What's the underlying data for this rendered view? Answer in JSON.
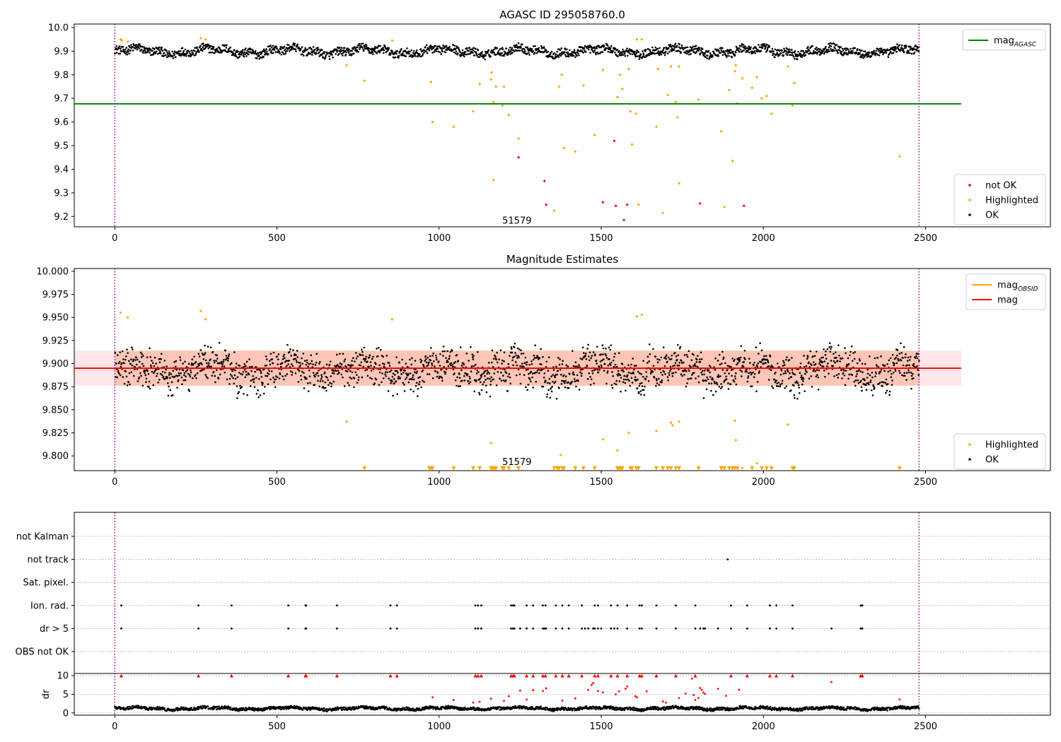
{
  "chart_data": [
    {
      "type": "scatter",
      "title": "AGASC ID 295058760.0",
      "xlabel": "",
      "ylabel": "",
      "xlim": [
        -125,
        2885
      ],
      "ylim": [
        9.156,
        10.015
      ],
      "xticks": [
        "0",
        "500",
        "1000",
        "1500",
        "2000",
        "2500"
      ],
      "yticks": [
        "9.2",
        "9.3",
        "9.4",
        "9.5",
        "9.6",
        "9.7",
        "9.8",
        "9.9",
        "10.0"
      ],
      "grid": false,
      "legend_top": {
        "position": "top-right",
        "entries": [
          {
            "label": "mag",
            "subscript": "AGASC",
            "color": "#008000"
          }
        ]
      },
      "legend_bottom": {
        "position": "bottom-right",
        "entries": [
          {
            "label": "not OK",
            "color": "#ff0000"
          },
          {
            "label": "Highlighted",
            "color": "#ffa500"
          },
          {
            "label": "OK",
            "color": "#000000"
          }
        ]
      },
      "reference_line": {
        "y": 9.677,
        "x_range": [
          -125,
          2610
        ],
        "color": "#008000"
      },
      "vlines": [
        {
          "x": 0,
          "color": "#800080"
        },
        {
          "x": 2480,
          "color": "#800080"
        }
      ],
      "annotation": {
        "text": "51579",
        "x": 1240,
        "y": 9.17
      },
      "ok_band": {
        "x_range": [
          0,
          2480
        ],
        "center": 9.9,
        "amplitude": 0.02
      },
      "series": [
        {
          "name": "Highlighted",
          "color": "#ffa500",
          "points": [
            [
              18,
              9.95
            ],
            [
              22,
              9.945
            ],
            [
              40,
              9.94
            ],
            [
              265,
              9.955
            ],
            [
              280,
              9.95
            ],
            [
              715,
              9.84
            ],
            [
              770,
              9.775
            ],
            [
              855,
              9.945
            ],
            [
              975,
              9.77
            ],
            [
              980,
              9.6
            ],
            [
              1045,
              9.58
            ],
            [
              1105,
              9.645
            ],
            [
              1125,
              9.76
            ],
            [
              1160,
              9.78
            ],
            [
              1162,
              9.81
            ],
            [
              1168,
              9.685
            ],
            [
              1168,
              9.355
            ],
            [
              1175,
              9.75
            ],
            [
              1195,
              9.67
            ],
            [
              1200,
              9.75
            ],
            [
              1215,
              9.63
            ],
            [
              1245,
              9.53
            ],
            [
              1355,
              9.225
            ],
            [
              1370,
              9.75
            ],
            [
              1378,
              9.8
            ],
            [
              1385,
              9.49
            ],
            [
              1420,
              9.475
            ],
            [
              1445,
              9.755
            ],
            [
              1480,
              9.545
            ],
            [
              1505,
              9.82
            ],
            [
              1550,
              9.705
            ],
            [
              1558,
              9.8
            ],
            [
              1565,
              9.74
            ],
            [
              1585,
              9.825
            ],
            [
              1590,
              9.645
            ],
            [
              1595,
              9.505
            ],
            [
              1608,
              9.635
            ],
            [
              1610,
              9.95
            ],
            [
              1615,
              9.25
            ],
            [
              1625,
              9.95
            ],
            [
              1670,
              9.58
            ],
            [
              1675,
              9.825
            ],
            [
              1690,
              9.215
            ],
            [
              1705,
              9.715
            ],
            [
              1715,
              9.835
            ],
            [
              1730,
              9.685
            ],
            [
              1735,
              9.62
            ],
            [
              1740,
              9.34
            ],
            [
              1740,
              9.835
            ],
            [
              1800,
              9.695
            ],
            [
              1870,
              9.56
            ],
            [
              1880,
              9.24
            ],
            [
              1895,
              9.735
            ],
            [
              1905,
              9.435
            ],
            [
              1912,
              9.815
            ],
            [
              1915,
              9.84
            ],
            [
              1920,
              9.68
            ],
            [
              1935,
              9.785
            ],
            [
              1965,
              9.745
            ],
            [
              1980,
              9.79
            ],
            [
              1995,
              9.7
            ],
            [
              2010,
              9.71
            ],
            [
              2025,
              9.635
            ],
            [
              2075,
              9.835
            ],
            [
              2090,
              9.67
            ],
            [
              2095,
              9.765
            ],
            [
              2420,
              9.455
            ]
          ]
        },
        {
          "name": "not OK",
          "color": "#ff0000",
          "points": [
            [
              1245,
              9.45
            ],
            [
              1325,
              9.35
            ],
            [
              1330,
              9.25
            ],
            [
              1505,
              9.26
            ],
            [
              1540,
              9.52
            ],
            [
              1545,
              9.245
            ],
            [
              1570,
              9.185
            ],
            [
              1580,
              9.25
            ],
            [
              1805,
              9.255
            ],
            [
              1940,
              9.245
            ]
          ]
        }
      ]
    },
    {
      "type": "scatter",
      "title": "Magnitude Estimates",
      "xlabel": "",
      "ylabel": "",
      "xlim": [
        -125,
        2885
      ],
      "ylim": [
        9.784,
        10.003
      ],
      "xticks": [
        "0",
        "500",
        "1000",
        "1500",
        "2000",
        "2500"
      ],
      "yticks": [
        "9.800",
        "9.825",
        "9.850",
        "9.875",
        "9.900",
        "9.925",
        "9.950",
        "9.975",
        "10.000"
      ],
      "grid": false,
      "legend_top": {
        "position": "top-right",
        "entries": [
          {
            "label": "mag",
            "subscript": "OBSID",
            "color": "#ffa500"
          },
          {
            "label": "mag",
            "subscript": "",
            "color": "#ff0000"
          }
        ]
      },
      "legend_bottom": {
        "position": "bottom-right",
        "entries": [
          {
            "label": "Highlighted",
            "color": "#ffa500"
          },
          {
            "label": "OK",
            "color": "#000000"
          }
        ]
      },
      "mean_line": {
        "y": 9.895,
        "x_range": [
          -125,
          2610
        ],
        "color": "#ff0000"
      },
      "obsid_line": {
        "y": 9.895,
        "x_range": [
          0,
          2480
        ],
        "color": "#ffa500"
      },
      "band_red": {
        "range": [
          9.876,
          9.914
        ],
        "x_range": [
          -125,
          2610
        ],
        "color": "#ffb6c1"
      },
      "band_orange": {
        "range": [
          9.876,
          9.914
        ],
        "x_range": [
          0,
          2480
        ],
        "color": "#ffa07a"
      },
      "vlines": [
        {
          "x": 0,
          "color": "#800080"
        },
        {
          "x": 2480,
          "color": "#800080"
        }
      ],
      "annotation": {
        "text": "51579",
        "x": 1240,
        "y": 9.79
      },
      "ok_band": {
        "x_range": [
          0,
          2480
        ],
        "center": 9.893,
        "amplitude": 0.013
      },
      "series": [
        {
          "name": "Highlighted",
          "color": "#ffa500",
          "points": [
            [
              18,
              9.955
            ],
            [
              40,
              9.95
            ],
            [
              265,
              9.957
            ],
            [
              280,
              9.948
            ],
            [
              715,
              9.837
            ],
            [
              855,
              9.948
            ],
            [
              1160,
              9.814
            ],
            [
              1375,
              9.801
            ],
            [
              1505,
              9.818
            ],
            [
              1550,
              9.806
            ],
            [
              1585,
              9.825
            ],
            [
              1610,
              9.951
            ],
            [
              1625,
              9.953
            ],
            [
              1670,
              9.827
            ],
            [
              1715,
              9.836
            ],
            [
              1720,
              9.833
            ],
            [
              1740,
              9.837
            ],
            [
              1912,
              9.838
            ],
            [
              1915,
              9.817
            ],
            [
              1935,
              9.787
            ],
            [
              1980,
              9.792
            ],
            [
              2075,
              9.834
            ]
          ]
        }
      ],
      "offscale_markers": {
        "color": "#ffa500",
        "shape": "triangle-down",
        "y": 9.7865,
        "x": [
          770,
          970,
          975,
          980,
          1045,
          1105,
          1125,
          1160,
          1165,
          1170,
          1175,
          1195,
          1200,
          1215,
          1245,
          1355,
          1365,
          1370,
          1380,
          1385,
          1420,
          1445,
          1480,
          1550,
          1555,
          1560,
          1565,
          1590,
          1595,
          1608,
          1615,
          1670,
          1690,
          1705,
          1715,
          1730,
          1740,
          1800,
          1870,
          1880,
          1895,
          1905,
          1912,
          1920,
          1965,
          1995,
          2010,
          2025,
          2090,
          2095,
          2420
        ]
      }
    },
    {
      "type": "scatter",
      "title": "",
      "xlabel": "",
      "ylabel": "",
      "xlim": [
        -125,
        2885
      ],
      "categories": [
        "not Kalman",
        "not track",
        "Sat. pixel.",
        "Ion. rad.",
        "dr > 5",
        "OBS not OK"
      ],
      "grid": true,
      "flags": [
        {
          "category": "not track",
          "x": [
            1890
          ]
        },
        {
          "category": "Ion. rad.",
          "x": [
            20,
            258,
            360,
            535,
            588,
            590,
            685,
            850,
            870,
            1112,
            1120,
            1130,
            1222,
            1228,
            1232,
            1270,
            1290,
            1320,
            1328,
            1360,
            1380,
            1400,
            1440,
            1480,
            1490,
            1530,
            1550,
            1580,
            1618,
            1625,
            1670,
            1730,
            1790,
            1900,
            1950,
            2020,
            2040,
            2090,
            2300,
            2305
          ]
        },
        {
          "category": "dr > 5",
          "x": [
            20,
            258,
            360,
            535,
            588,
            590,
            685,
            850,
            870,
            1112,
            1120,
            1130,
            1222,
            1228,
            1232,
            1250,
            1270,
            1290,
            1320,
            1325,
            1330,
            1360,
            1380,
            1400,
            1440,
            1450,
            1460,
            1475,
            1480,
            1490,
            1500,
            1530,
            1540,
            1550,
            1580,
            1618,
            1625,
            1670,
            1730,
            1790,
            1805,
            1815,
            1820,
            1860,
            1900,
            1950,
            2020,
            2040,
            2090,
            2210,
            2300,
            2305
          ]
        }
      ]
    },
    {
      "type": "scatter",
      "title": "",
      "xlabel": "",
      "ylabel": "dr",
      "xlim": [
        -125,
        2885
      ],
      "ylim": [
        -0.6,
        10.6
      ],
      "xticks": [
        "0",
        "500",
        "1000",
        "1500",
        "2000",
        "2500"
      ],
      "yticks": [
        "0",
        "5",
        "10"
      ],
      "grid": true,
      "ok_band": {
        "x_range": [
          0,
          2480
        ],
        "center": 1.2,
        "amplitude": 0.45
      },
      "series": [
        {
          "name": "",
          "color": "#ff0000",
          "points": [
            [
              980,
              4.2
            ],
            [
              1045,
              3.5
            ],
            [
              1105,
              2.8
            ],
            [
              1125,
              3.0
            ],
            [
              1160,
              3.8
            ],
            [
              1200,
              3.2
            ],
            [
              1215,
              4.5
            ],
            [
              1250,
              6.0
            ],
            [
              1270,
              3.6
            ],
            [
              1290,
              6.1
            ],
            [
              1320,
              5.9
            ],
            [
              1330,
              6.6
            ],
            [
              1380,
              3.3
            ],
            [
              1420,
              3.9
            ],
            [
              1460,
              6.2
            ],
            [
              1470,
              7.5
            ],
            [
              1475,
              8.0
            ],
            [
              1490,
              5.9
            ],
            [
              1505,
              5.5
            ],
            [
              1545,
              5.0
            ],
            [
              1555,
              5.8
            ],
            [
              1575,
              6.5
            ],
            [
              1580,
              7.1
            ],
            [
              1605,
              4.5
            ],
            [
              1610,
              4.2
            ],
            [
              1640,
              5.8
            ],
            [
              1690,
              3.1
            ],
            [
              1700,
              2.8
            ],
            [
              1740,
              4.0
            ],
            [
              1760,
              5.2
            ],
            [
              1780,
              9.2
            ],
            [
              1785,
              4.8
            ],
            [
              1790,
              3.5
            ],
            [
              1800,
              4.0
            ],
            [
              1805,
              6.7
            ],
            [
              1810,
              6.2
            ],
            [
              1815,
              5.5
            ],
            [
              1820,
              5.1
            ],
            [
              1860,
              6.5
            ],
            [
              1885,
              4.6
            ],
            [
              1925,
              6.2
            ],
            [
              2210,
              8.3
            ],
            [
              2420,
              3.6
            ]
          ]
        }
      ],
      "clipped_markers": {
        "color": "#ff0000",
        "shape": "triangle-up",
        "y": 10,
        "x": [
          20,
          258,
          360,
          535,
          588,
          590,
          685,
          850,
          870,
          1112,
          1120,
          1130,
          1222,
          1228,
          1232,
          1270,
          1290,
          1320,
          1328,
          1360,
          1380,
          1400,
          1440,
          1480,
          1490,
          1530,
          1550,
          1580,
          1618,
          1625,
          1670,
          1730,
          1790,
          1900,
          1950,
          2020,
          2040,
          2090,
          2300,
          2305
        ]
      }
    }
  ]
}
